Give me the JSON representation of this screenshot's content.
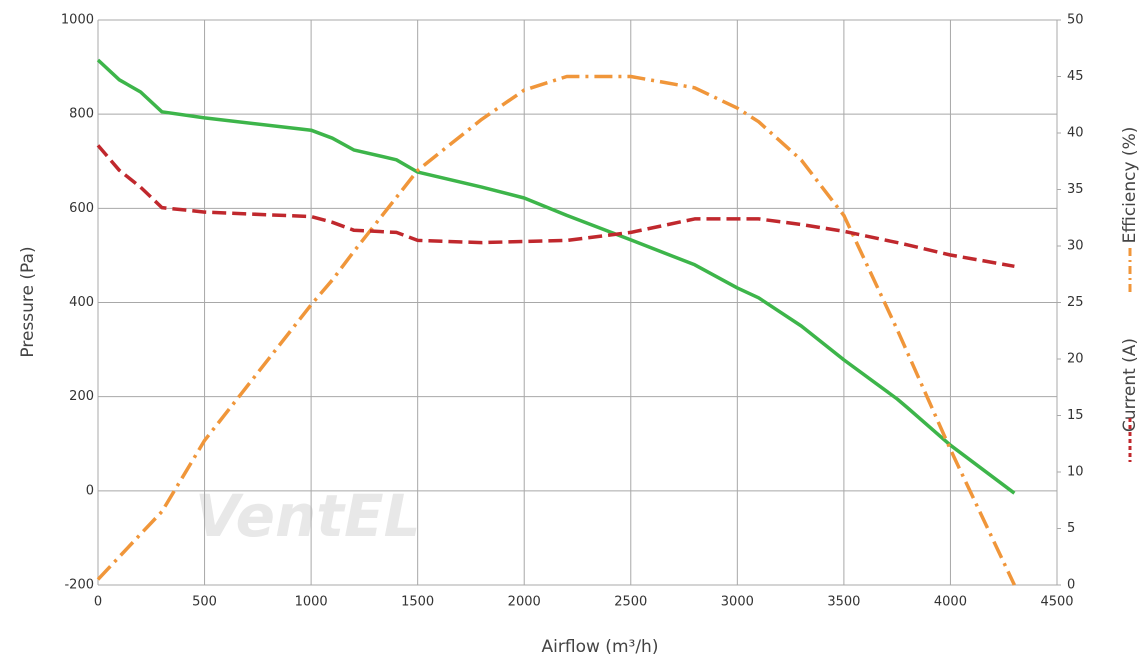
{
  "chart_data": {
    "type": "line",
    "logo": "VentEL",
    "x_label": "Airflow (m³/h)",
    "y_label": "Pressure (Pa)",
    "x": [
      0,
      100,
      200,
      300,
      500,
      1000,
      1100,
      1200,
      1400,
      1500,
      1800,
      2000,
      2200,
      2500,
      2800,
      3000,
      3100,
      3300,
      3500,
      3750,
      3800,
      4000,
      4300
    ],
    "xlim": [
      0,
      4500
    ],
    "xticks": [
      0,
      500,
      1000,
      1500,
      2000,
      2500,
      3000,
      3500,
      4000,
      4500
    ],
    "ylim": [
      -200,
      1000
    ],
    "yticks": [
      -200,
      0,
      200,
      400,
      600,
      800,
      1000
    ],
    "y2lim": [
      0,
      50
    ],
    "y2ticks": [
      0,
      5,
      10,
      15,
      20,
      25,
      30,
      35,
      40,
      45,
      50
    ],
    "grid": true,
    "series": [
      {
        "name": "Pressure (Pa)",
        "color": "#3db54a",
        "dash": "solid",
        "values": [
          915,
          873,
          847,
          805,
          792,
          766,
          749,
          724,
          703,
          677,
          645,
          622,
          585,
          533,
          480,
          431,
          410,
          350,
          278,
          195,
          176,
          97,
          -5
        ]
      },
      {
        "name": "Efficiency (%)",
        "color": "#f0963a",
        "dash": "dashdot",
        "axis": "y2",
        "values": [
          0.5,
          2.5,
          4.5,
          6.5,
          12.8,
          24.8,
          27,
          29.5,
          34.3,
          36.7,
          41.2,
          43.8,
          45,
          45,
          44,
          42.2,
          41,
          37.6,
          32.7,
          22.6,
          20.5,
          12,
          0
        ]
      },
      {
        "name": "Current (A)",
        "color": "#c0282d",
        "dash": "dashed",
        "axis": "y2",
        "values": [
          38.9,
          36.7,
          35.2,
          33.4,
          33.0,
          32.6,
          32.1,
          31.4,
          31.2,
          30.5,
          30.3,
          30.4,
          30.5,
          31.2,
          32.4,
          32.4,
          32.4,
          31.9,
          31.3,
          30.3,
          30.1,
          29.2,
          28.2
        ]
      }
    ]
  }
}
